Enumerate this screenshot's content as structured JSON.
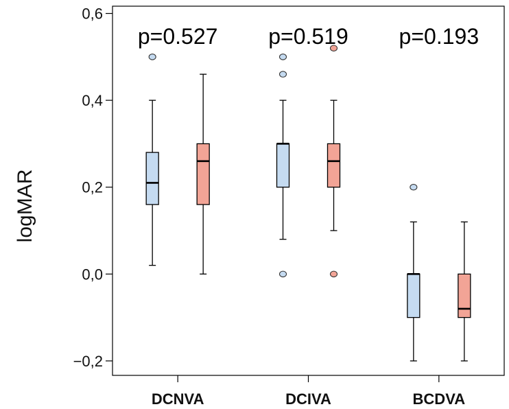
{
  "chart_data": {
    "type": "box",
    "ylabel": "logMAR",
    "ylim": [
      -0.2333,
      0.6167
    ],
    "yticks": [
      -0.2,
      0.0,
      0.2,
      0.4,
      0.6
    ],
    "ytick_labels": [
      "−0,2",
      "0,0",
      "0,2",
      "0,4",
      "0,6"
    ],
    "categories": [
      "DCNVA",
      "DCIVA",
      "BCDVA"
    ],
    "annotations": [
      "p=0.527",
      "p=0.519",
      "p=0.193"
    ],
    "grid": false,
    "legend": "none",
    "series_colors": [
      "#c5dbf1",
      "#f2a496"
    ],
    "boxes": [
      {
        "category": "DCNVA",
        "group": 0,
        "whisker_low": 0.02,
        "q1": 0.16,
        "median": 0.21,
        "q3": 0.28,
        "whisker_high": 0.4,
        "outliers": [
          0.5
        ]
      },
      {
        "category": "DCNVA",
        "group": 1,
        "whisker_low": 0.0,
        "q1": 0.16,
        "median": 0.26,
        "q3": 0.3,
        "whisker_high": 0.46,
        "outliers": []
      },
      {
        "category": "DCIVA",
        "group": 0,
        "whisker_low": 0.08,
        "q1": 0.2,
        "median": 0.3,
        "q3": 0.3,
        "whisker_high": 0.4,
        "outliers": [
          0.5,
          0.46,
          0.0
        ]
      },
      {
        "category": "DCIVA",
        "group": 1,
        "whisker_low": 0.1,
        "q1": 0.2,
        "median": 0.26,
        "q3": 0.3,
        "whisker_high": 0.4,
        "outliers": [
          0.52,
          0.0
        ]
      },
      {
        "category": "BCDVA",
        "group": 0,
        "whisker_low": -0.2,
        "q1": -0.1,
        "median": 0.0,
        "q3": 0.0,
        "whisker_high": 0.12,
        "outliers": [
          0.2
        ]
      },
      {
        "category": "BCDVA",
        "group": 1,
        "whisker_low": -0.2,
        "q1": -0.1,
        "median": -0.08,
        "q3": 0.0,
        "whisker_high": 0.12,
        "outliers": []
      }
    ]
  }
}
